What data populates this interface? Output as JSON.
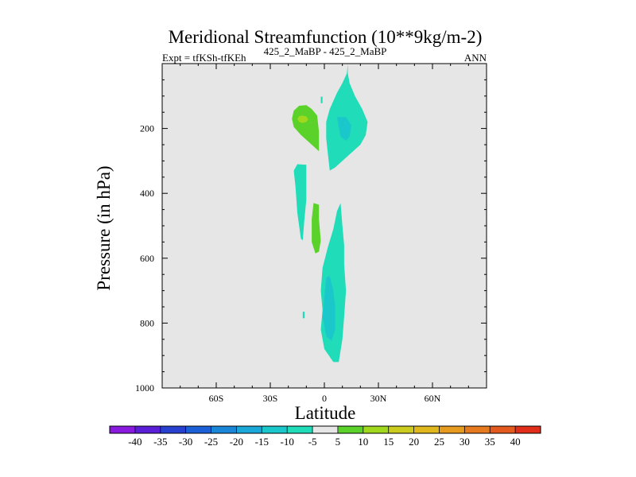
{
  "chart_data": {
    "type": "heatmap",
    "plot_kind": "filled-contour",
    "title": "Meridional Streamfunction (10**9kg/m-2)",
    "subtitle_left": "Expt = tfKSh-tfKEh",
    "subtitle_center": "425_2_MaBP - 425_2_MaBP",
    "subtitle_right": "ANN",
    "xlabel": "Latitude",
    "ylabel": "Pressure (in hPa)",
    "xlim": [
      -90,
      90
    ],
    "ylim": [
      1000,
      0
    ],
    "x_ticks": [
      {
        "value": -60,
        "label": "60S"
      },
      {
        "value": -30,
        "label": "30S"
      },
      {
        "value": 0,
        "label": "0"
      },
      {
        "value": 30,
        "label": "30N"
      },
      {
        "value": 60,
        "label": "60N"
      }
    ],
    "y_ticks": [
      {
        "value": 200,
        "label": "200"
      },
      {
        "value": 400,
        "label": "400"
      },
      {
        "value": 600,
        "label": "600"
      },
      {
        "value": 800,
        "label": "800"
      },
      {
        "value": 1000,
        "label": "1000"
      }
    ],
    "background_color": "#e6e6e6",
    "colorbar": {
      "boundaries": [
        "-40",
        "-35",
        "-30",
        "-25",
        "-20",
        "-15",
        "-10",
        "-5",
        "5",
        "10",
        "15",
        "20",
        "25",
        "30",
        "35",
        "40"
      ],
      "colors": [
        "#8a1ae0",
        "#5b1ed8",
        "#2840d0",
        "#1c60d8",
        "#1a86d8",
        "#1aa8d8",
        "#1ac8cc",
        "#20dcb8",
        "#e6e6e6",
        "#5ad22a",
        "#a0d81e",
        "#cccc1e",
        "#e0b81e",
        "#e69a1e",
        "#e67a1e",
        "#e45a1e",
        "#e02e1a"
      ]
    },
    "regions": [
      {
        "name": "cyan upper-right of equator",
        "color": "#20dcb8",
        "points": [
          [
            13,
            0
          ],
          [
            12.5,
            30
          ],
          [
            10,
            60
          ],
          [
            7,
            90
          ],
          [
            3,
            140
          ],
          [
            1,
            180
          ],
          [
            1,
            230
          ],
          [
            2,
            280
          ],
          [
            3,
            330
          ],
          [
            6,
            320
          ],
          [
            14,
            280
          ],
          [
            20,
            250
          ],
          [
            23,
            220
          ],
          [
            24,
            180
          ],
          [
            21,
            140
          ],
          [
            17,
            100
          ],
          [
            14,
            60
          ],
          [
            13,
            30
          ]
        ]
      },
      {
        "name": "blue core upper",
        "color": "#1ac8cc",
        "points": [
          [
            7,
            165
          ],
          [
            8,
            195
          ],
          [
            9,
            225
          ],
          [
            12,
            238
          ],
          [
            14,
            225
          ],
          [
            15,
            190
          ],
          [
            12,
            165
          ]
        ]
      },
      {
        "name": "cyan small upper-left",
        "color": "#20dcb8",
        "points": [
          [
            -2,
            102
          ],
          [
            -1,
            102
          ],
          [
            -1,
            122
          ],
          [
            -2,
            122
          ]
        ]
      },
      {
        "name": "green upper-left",
        "color": "#5ad22a",
        "points": [
          [
            -18,
            170
          ],
          [
            -17,
            145
          ],
          [
            -14,
            130
          ],
          [
            -10,
            128
          ],
          [
            -7,
            140
          ],
          [
            -4,
            160
          ],
          [
            -3,
            210
          ],
          [
            -3,
            270
          ],
          [
            -8,
            245
          ],
          [
            -13,
            220
          ],
          [
            -17,
            195
          ]
        ]
      },
      {
        "name": "yellow-green core",
        "color": "#a0d81e",
        "points": [
          [
            -15,
            170
          ],
          [
            -14,
            162
          ],
          [
            -12,
            160
          ],
          [
            -10,
            163
          ],
          [
            -9,
            172
          ],
          [
            -10,
            180
          ],
          [
            -12,
            183
          ],
          [
            -14,
            180
          ]
        ]
      },
      {
        "name": "cyan mid-left",
        "color": "#20dcb8",
        "points": [
          [
            -15,
            310
          ],
          [
            -10,
            312
          ],
          [
            -10,
            350
          ],
          [
            -10,
            420
          ],
          [
            -11,
            475
          ],
          [
            -12,
            545
          ],
          [
            -13,
            540
          ],
          [
            -15,
            460
          ],
          [
            -16,
            380
          ],
          [
            -17,
            330
          ]
        ]
      },
      {
        "name": "green mid",
        "color": "#5ad22a",
        "points": [
          [
            -6,
            430
          ],
          [
            -3,
            435
          ],
          [
            -3,
            480
          ],
          [
            -2,
            545
          ],
          [
            -3,
            580
          ],
          [
            -5,
            585
          ],
          [
            -7,
            550
          ],
          [
            -7,
            480
          ]
        ]
      },
      {
        "name": "cyan lower",
        "color": "#20dcb8",
        "points": [
          [
            9,
            430
          ],
          [
            10,
            500
          ],
          [
            11,
            560
          ],
          [
            11,
            620
          ],
          [
            12,
            700
          ],
          [
            11,
            780
          ],
          [
            10,
            850
          ],
          [
            8,
            920
          ],
          [
            5,
            920
          ],
          [
            0,
            880
          ],
          [
            -2,
            820
          ],
          [
            -1,
            760
          ],
          [
            -2,
            700
          ],
          [
            -1,
            630
          ],
          [
            2,
            565
          ],
          [
            5,
            510
          ],
          [
            7,
            455
          ]
        ]
      },
      {
        "name": "blue core lower",
        "color": "#1ac8cc",
        "points": [
          [
            1,
            660
          ],
          [
            3,
            655
          ],
          [
            5,
            700
          ],
          [
            6,
            750
          ],
          [
            6,
            820
          ],
          [
            4,
            855
          ],
          [
            1,
            840
          ],
          [
            -1,
            780
          ],
          [
            0,
            720
          ]
        ]
      },
      {
        "name": "cyan small lower-left",
        "color": "#20dcb8",
        "points": [
          [
            -12,
            765
          ],
          [
            -11,
            765
          ],
          [
            -11,
            785
          ],
          [
            -12,
            785
          ]
        ]
      }
    ]
  }
}
